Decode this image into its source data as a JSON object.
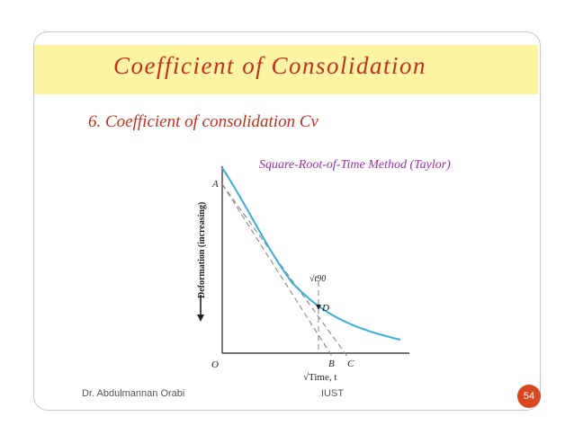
{
  "slide": {
    "title": "Coefficient  of  Consolidation",
    "subheading": "6. Coefficient of  consolidation Cv",
    "method_label": "Square-Root-of-Time Method (Taylor)"
  },
  "figure": {
    "ylabel": "Deformation (increasing)",
    "xlabel": "√Time, t",
    "points": {
      "a": "A",
      "o": "O",
      "b": "B",
      "c": "C",
      "d": "D",
      "t90": "√t90"
    }
  },
  "footer": {
    "author": "Dr. Abdulmannan Orabi",
    "organization": "IUST",
    "page_number": "54"
  },
  "colors": {
    "title_text": "#c0301f",
    "title_band": "#fdf4a3",
    "method_label": "#9b2fa6",
    "curve": "#3aaed8",
    "badge": "#d9471f"
  }
}
